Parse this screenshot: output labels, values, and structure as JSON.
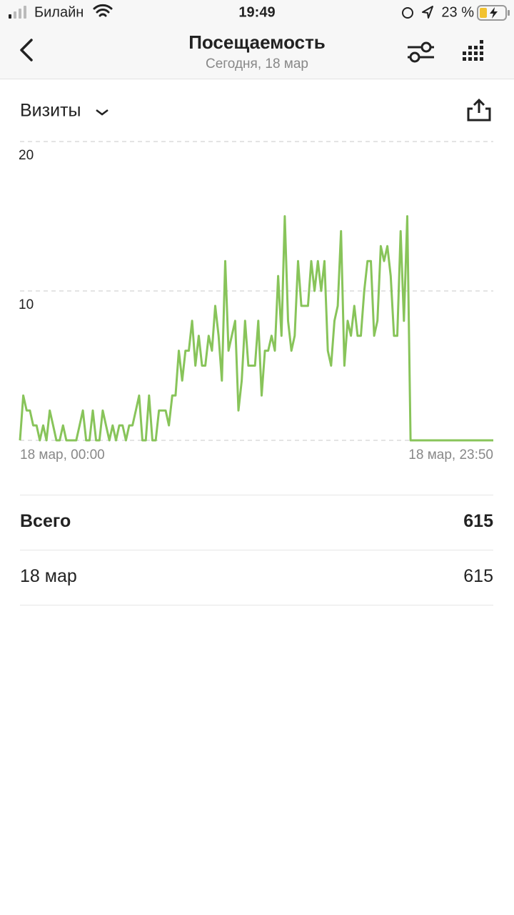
{
  "status_bar": {
    "carrier": "Билайн",
    "time": "19:49",
    "battery": "23 %"
  },
  "header": {
    "title": "Посещаемость",
    "subtitle": "Сегодня, 18 мар"
  },
  "metric": "Визиты",
  "chart_data": {
    "type": "line",
    "color": "#88c45a",
    "grid": true,
    "ylim": [
      0,
      20
    ],
    "yticks": [
      10,
      20
    ],
    "categories": [
      "18 мар, 00:00",
      null,
      null,
      null,
      null,
      null,
      null,
      null,
      null,
      null,
      null,
      null,
      null,
      null,
      null,
      null,
      null,
      null,
      null,
      null,
      null,
      null,
      null,
      null,
      null,
      null,
      null,
      null,
      null,
      null,
      null,
      null,
      null,
      null,
      null,
      null,
      null,
      null,
      null,
      null,
      null,
      null,
      null,
      null,
      null,
      null,
      null,
      null,
      null,
      null,
      null,
      null,
      null,
      null,
      null,
      null,
      null,
      null,
      null,
      null,
      null,
      null,
      null,
      null,
      null,
      null,
      null,
      null,
      null,
      null,
      null,
      null,
      null,
      null,
      null,
      null,
      null,
      null,
      null,
      null,
      null,
      null,
      null,
      null,
      null,
      null,
      null,
      null,
      null,
      null,
      null,
      null,
      null,
      null,
      null,
      null,
      null,
      null,
      null,
      null,
      null,
      null,
      null,
      null,
      null,
      null,
      null,
      null,
      null,
      null,
      null,
      null,
      null,
      null,
      null,
      null,
      null,
      null,
      null,
      null,
      null,
      null,
      null,
      null,
      null,
      null,
      null,
      null,
      null,
      null,
      null,
      null,
      null,
      null,
      null,
      null,
      null,
      null,
      null,
      null,
      null,
      null,
      null,
      "18 мар, 23:50"
    ],
    "values": [
      0,
      3,
      2,
      2,
      1,
      1,
      0,
      1,
      0,
      2,
      1,
      0,
      0,
      1,
      0,
      0,
      0,
      0,
      1,
      2,
      0,
      0,
      2,
      0,
      0,
      2,
      1,
      0,
      1,
      0,
      1,
      1,
      0,
      1,
      1,
      2,
      3,
      0,
      0,
      3,
      0,
      0,
      2,
      2,
      2,
      1,
      3,
      3,
      6,
      4,
      6,
      6,
      8,
      5,
      7,
      5,
      5,
      7,
      6,
      9,
      7,
      4,
      12,
      6,
      7,
      8,
      2,
      4,
      8,
      5,
      5,
      5,
      8,
      3,
      6,
      6,
      7,
      6,
      11,
      7,
      15,
      8,
      6,
      7,
      12,
      9,
      9,
      9,
      12,
      10,
      12,
      10,
      12,
      6,
      5,
      8,
      9,
      14,
      5,
      8,
      7,
      9,
      7,
      7,
      10,
      12,
      12,
      7,
      8,
      13,
      12,
      13,
      11,
      7,
      7,
      14,
      8,
      15,
      0,
      0,
      0,
      0,
      0,
      0,
      0,
      0,
      0,
      0,
      0,
      0,
      0,
      0,
      0,
      0,
      0,
      0,
      0,
      0,
      0,
      0,
      0,
      0,
      0,
      0
    ]
  },
  "table": {
    "rows": [
      [
        "Всего",
        "615"
      ],
      [
        "18 мар",
        "615"
      ]
    ]
  }
}
